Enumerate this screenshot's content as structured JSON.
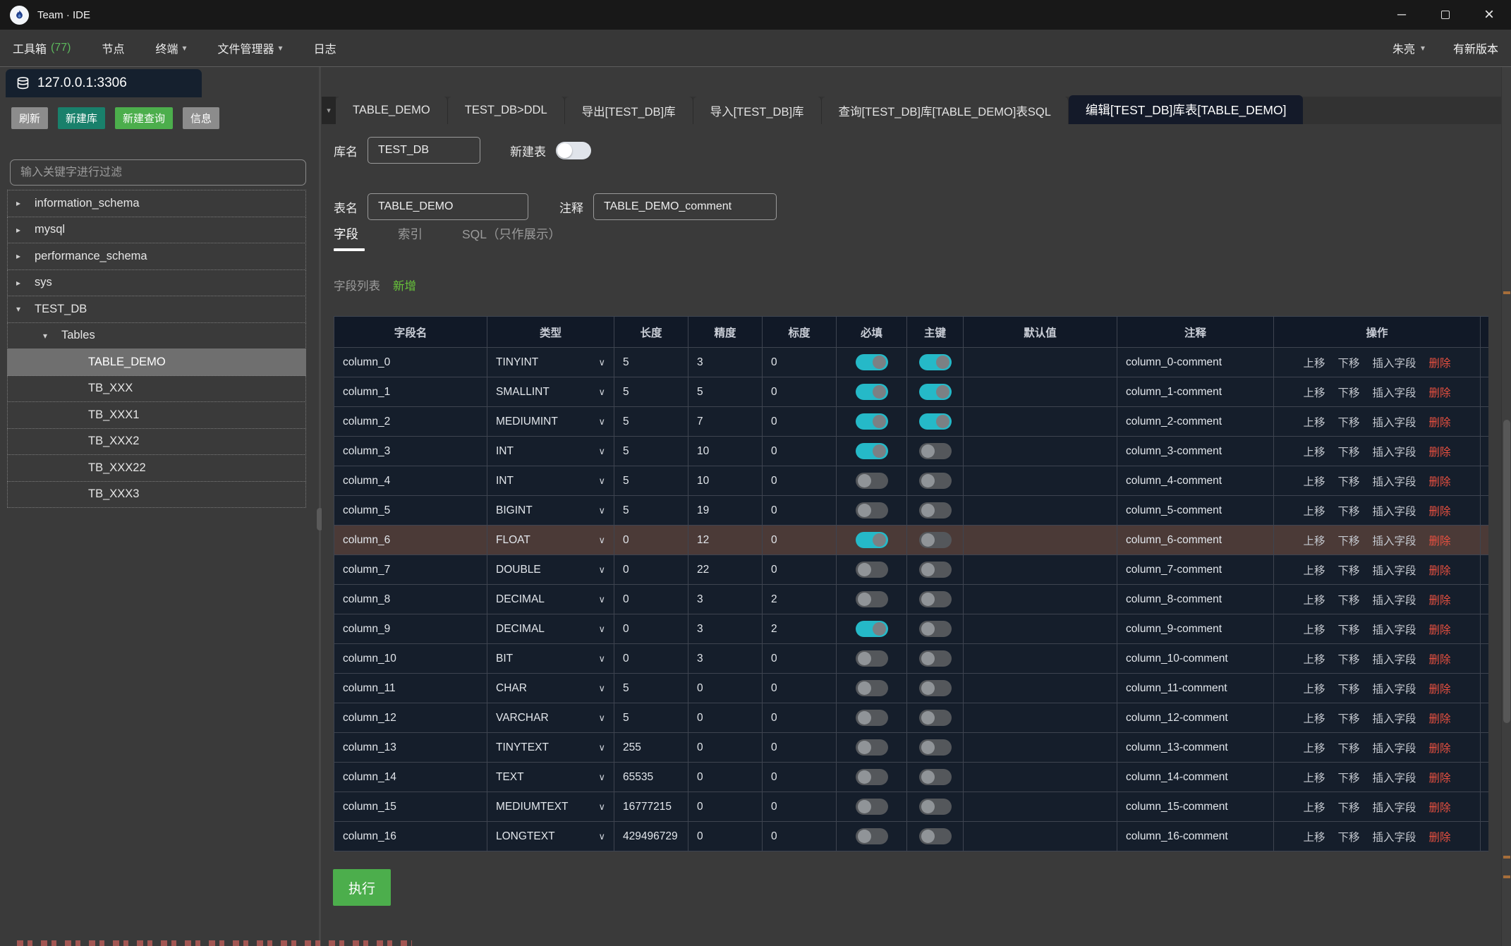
{
  "window": {
    "title": "Team · IDE",
    "controls": {
      "minimize": "─",
      "maximize": "",
      "close": "×"
    }
  },
  "menubar": {
    "items": [
      {
        "label": "工具箱",
        "count": "(77)",
        "chevron": false
      },
      {
        "label": "节点",
        "chevron": false
      },
      {
        "label": "终端",
        "chevron": true
      },
      {
        "label": "文件管理器",
        "chevron": true
      },
      {
        "label": "日志",
        "chevron": false
      }
    ],
    "user": "朱亮",
    "update_link": "有新版本"
  },
  "connection": {
    "label": "127.0.0.1:3306"
  },
  "sidebar": {
    "buttons": [
      {
        "label": "刷新",
        "style": "gray"
      },
      {
        "label": "新建库",
        "style": "teal"
      },
      {
        "label": "新建查询",
        "style": "green"
      },
      {
        "label": "信息",
        "style": "gray"
      }
    ],
    "filter_placeholder": "输入关键字进行过滤",
    "tree": [
      {
        "label": "information_schema",
        "level": 0,
        "state": "collapsed",
        "selected": false
      },
      {
        "label": "mysql",
        "level": 0,
        "state": "collapsed",
        "selected": false
      },
      {
        "label": "performance_schema",
        "level": 0,
        "state": "collapsed",
        "selected": false
      },
      {
        "label": "sys",
        "level": 0,
        "state": "collapsed",
        "selected": false
      },
      {
        "label": "TEST_DB",
        "level": 0,
        "state": "expanded",
        "selected": false
      },
      {
        "label": "Tables",
        "level": 1,
        "state": "expanded",
        "selected": false
      },
      {
        "label": "TABLE_DEMO",
        "level": 2,
        "state": "leaf",
        "selected": true
      },
      {
        "label": "TB_XXX",
        "level": 2,
        "state": "leaf",
        "selected": false
      },
      {
        "label": "TB_XXX1",
        "level": 2,
        "state": "leaf",
        "selected": false
      },
      {
        "label": "TB_XXX2",
        "level": 2,
        "state": "leaf",
        "selected": false
      },
      {
        "label": "TB_XXX22",
        "level": 2,
        "state": "leaf",
        "selected": false
      },
      {
        "label": "TB_XXX3",
        "level": 2,
        "state": "leaf",
        "selected": false
      }
    ]
  },
  "tabs": [
    {
      "label": "TABLE_DEMO",
      "active": false
    },
    {
      "label": "TEST_DB>DDL",
      "active": false
    },
    {
      "label": "导出[TEST_DB]库",
      "active": false
    },
    {
      "label": "导入[TEST_DB]库",
      "active": false
    },
    {
      "label": "查询[TEST_DB]库[TABLE_DEMO]表SQL",
      "active": false
    },
    {
      "label": "编辑[TEST_DB]库表[TABLE_DEMO]",
      "active": true
    }
  ],
  "form": {
    "db_label": "库名",
    "db_value": "TEST_DB",
    "new_table_label": "新建表",
    "new_table_on": false,
    "table_label": "表名",
    "table_value": "TABLE_DEMO",
    "comment_label": "注释",
    "comment_value": "TABLE_DEMO_comment",
    "subtabs": [
      {
        "label": "字段",
        "active": true
      },
      {
        "label": "索引",
        "active": false
      },
      {
        "label": "SQL（只作展示）",
        "active": false
      }
    ],
    "list_caption": "字段列表",
    "add_link": "新增"
  },
  "grid": {
    "headers": [
      "字段名",
      "类型",
      "长度",
      "精度",
      "标度",
      "必填",
      "主键",
      "默认值",
      "注释",
      "操作"
    ],
    "action_labels": [
      "上移",
      "下移",
      "插入字段",
      "删除"
    ],
    "rows": [
      {
        "name": "column_0",
        "type": "TINYINT",
        "length": "5",
        "precision": "3",
        "scale": "0",
        "required": true,
        "pk": true,
        "default": "",
        "comment": "column_0-comment",
        "highlight": false
      },
      {
        "name": "column_1",
        "type": "SMALLINT",
        "length": "5",
        "precision": "5",
        "scale": "0",
        "required": true,
        "pk": true,
        "default": "",
        "comment": "column_1-comment",
        "highlight": false
      },
      {
        "name": "column_2",
        "type": "MEDIUMINT",
        "length": "5",
        "precision": "7",
        "scale": "0",
        "required": true,
        "pk": true,
        "default": "",
        "comment": "column_2-comment",
        "highlight": false
      },
      {
        "name": "column_3",
        "type": "INT",
        "length": "5",
        "precision": "10",
        "scale": "0",
        "required": true,
        "pk": false,
        "default": "",
        "comment": "column_3-comment",
        "highlight": false
      },
      {
        "name": "column_4",
        "type": "INT",
        "length": "5",
        "precision": "10",
        "scale": "0",
        "required": false,
        "pk": false,
        "default": "",
        "comment": "column_4-comment",
        "highlight": false
      },
      {
        "name": "column_5",
        "type": "BIGINT",
        "length": "5",
        "precision": "19",
        "scale": "0",
        "required": false,
        "pk": false,
        "default": "",
        "comment": "column_5-comment",
        "highlight": false
      },
      {
        "name": "column_6",
        "type": "FLOAT",
        "length": "0",
        "precision": "12",
        "scale": "0",
        "required": true,
        "pk": false,
        "default": "",
        "comment": "column_6-comment",
        "highlight": true
      },
      {
        "name": "column_7",
        "type": "DOUBLE",
        "length": "0",
        "precision": "22",
        "scale": "0",
        "required": false,
        "pk": false,
        "default": "",
        "comment": "column_7-comment",
        "highlight": false
      },
      {
        "name": "column_8",
        "type": "DECIMAL",
        "length": "0",
        "precision": "3",
        "scale": "2",
        "required": false,
        "pk": false,
        "default": "",
        "comment": "column_8-comment",
        "highlight": false
      },
      {
        "name": "column_9",
        "type": "DECIMAL",
        "length": "0",
        "precision": "3",
        "scale": "2",
        "required": true,
        "pk": false,
        "default": "",
        "comment": "column_9-comment",
        "highlight": false
      },
      {
        "name": "column_10",
        "type": "BIT",
        "length": "0",
        "precision": "3",
        "scale": "0",
        "required": false,
        "pk": false,
        "default": "",
        "comment": "column_10-comment",
        "highlight": false
      },
      {
        "name": "column_11",
        "type": "CHAR",
        "length": "5",
        "precision": "0",
        "scale": "0",
        "required": false,
        "pk": false,
        "default": "",
        "comment": "column_11-comment",
        "highlight": false
      },
      {
        "name": "column_12",
        "type": "VARCHAR",
        "length": "5",
        "precision": "0",
        "scale": "0",
        "required": false,
        "pk": false,
        "default": "",
        "comment": "column_12-comment",
        "highlight": false
      },
      {
        "name": "column_13",
        "type": "TINYTEXT",
        "length": "255",
        "precision": "0",
        "scale": "0",
        "required": false,
        "pk": false,
        "default": "",
        "comment": "column_13-comment",
        "highlight": false
      },
      {
        "name": "column_14",
        "type": "TEXT",
        "length": "65535",
        "precision": "0",
        "scale": "0",
        "required": false,
        "pk": false,
        "default": "",
        "comment": "column_14-comment",
        "highlight": false
      },
      {
        "name": "column_15",
        "type": "MEDIUMTEXT",
        "length": "16777215",
        "precision": "0",
        "scale": "0",
        "required": false,
        "pk": false,
        "default": "",
        "comment": "column_15-comment",
        "highlight": false
      },
      {
        "name": "column_16",
        "type": "LONGTEXT",
        "length": "429496729",
        "precision": "0",
        "scale": "0",
        "required": false,
        "pk": false,
        "default": "",
        "comment": "column_16-comment",
        "highlight": false
      }
    ]
  },
  "execute_label": "执行",
  "colors": {
    "toggle_on": "#25b9c8",
    "toggle_off": "#54575b",
    "delete_red": "#e85040",
    "add_green": "#67c23a",
    "exec_green": "#4cae4c",
    "teal_button": "#19806b",
    "highlight_row": "#4b3a37",
    "panel_navy": "#151e2b"
  }
}
